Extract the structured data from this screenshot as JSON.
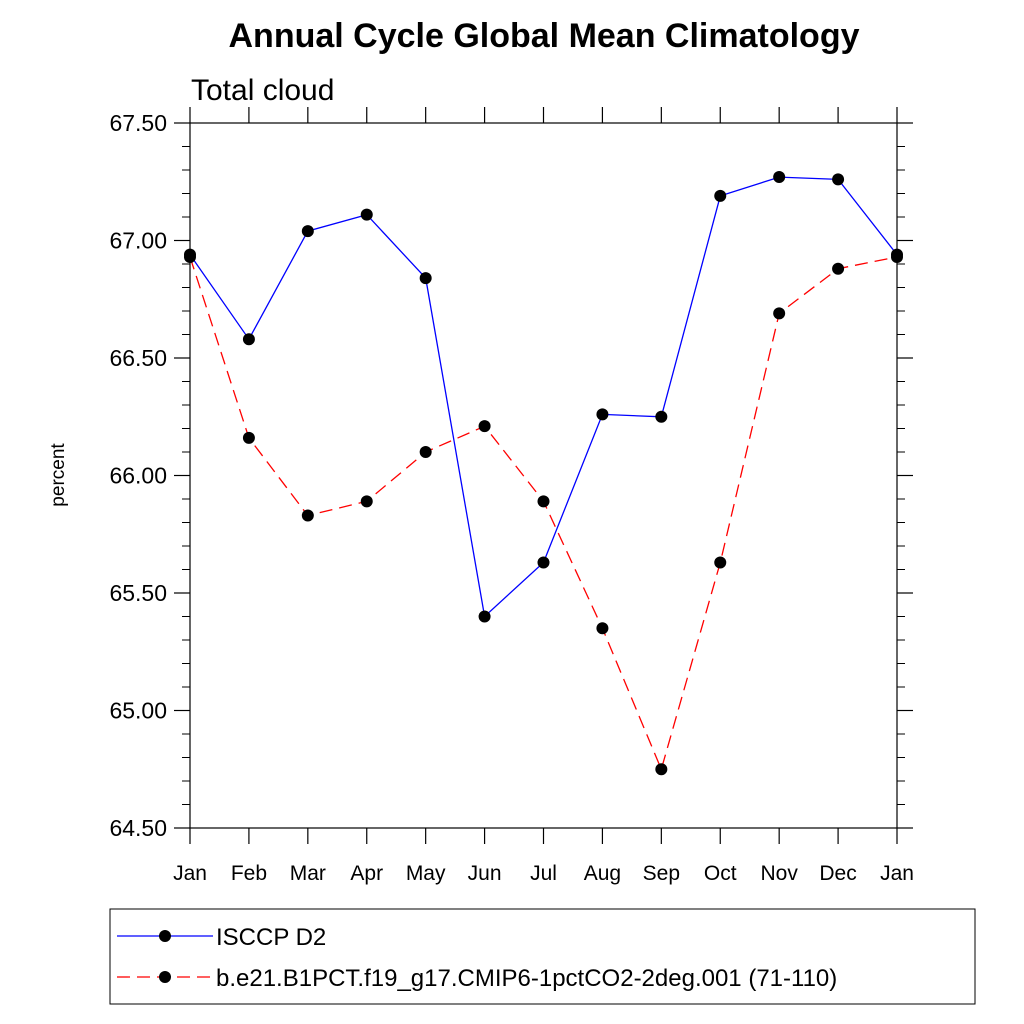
{
  "chart_data": {
    "type": "line",
    "title": "Annual Cycle Global Mean Climatology",
    "subtitle": "Total cloud",
    "xlabel": "",
    "ylabel": "percent",
    "ylim": [
      64.5,
      67.5
    ],
    "yticks": [
      "64.50",
      "65.00",
      "65.50",
      "66.00",
      "66.50",
      "67.00",
      "67.50"
    ],
    "categories": [
      "Jan",
      "Feb",
      "Mar",
      "Apr",
      "May",
      "Jun",
      "Jul",
      "Aug",
      "Sep",
      "Oct",
      "Nov",
      "Dec",
      "Jan"
    ],
    "grid": false,
    "legend_position": "bottom",
    "series": [
      {
        "name": "ISCCP D2",
        "color": "#0000ff",
        "dash": "solid",
        "marker": "filled-circle",
        "values": [
          66.94,
          66.58,
          67.04,
          67.11,
          66.84,
          65.4,
          65.63,
          66.26,
          66.25,
          67.19,
          67.27,
          67.26,
          66.94
        ]
      },
      {
        "name": "b.e21.B1PCT.f19_g17.CMIP6-1pctCO2-2deg.001 (71-110)",
        "color": "#ff0000",
        "dash": "dashed",
        "marker": "filled-circle",
        "values": [
          66.93,
          66.16,
          65.83,
          65.89,
          66.1,
          66.21,
          65.89,
          65.35,
          64.75,
          65.63,
          66.69,
          66.88,
          66.93
        ]
      }
    ]
  }
}
